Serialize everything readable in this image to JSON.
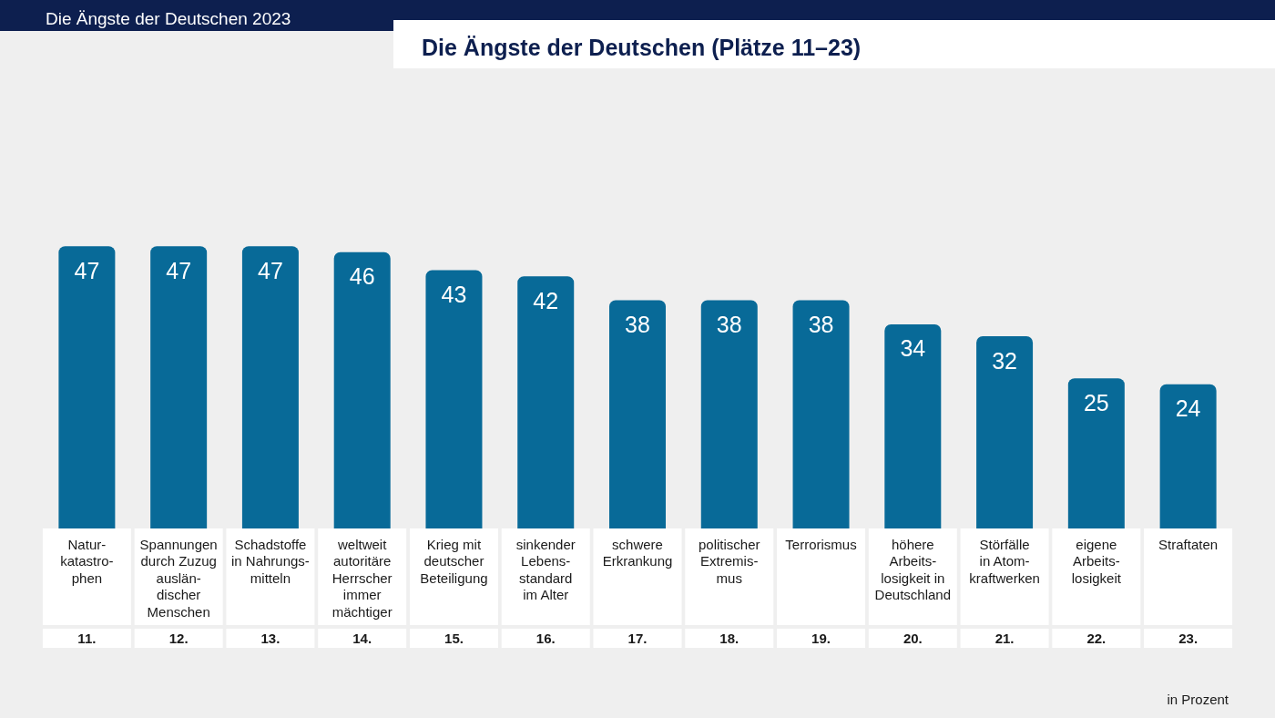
{
  "chart_data": {
    "type": "bar",
    "title": "Die Ängste der Deutschen 2023",
    "subtitle": "Die Ängste der Deutschen (Plätze 11–23)",
    "categories": [
      "Natur-\nkatastro-\nphen",
      "Spannungen\ndurch Zuzug\nauslän-\ndischer\nMenschen",
      "Schadstoffe\nin Nahrungs-\nmitteln",
      "weltweit\nautoritäre\nHerrscher\nimmer\nmächtiger",
      "Krieg mit\ndeutscher\nBeteiligung",
      "sinkender\nLebens-\nstandard\nim Alter",
      "schwere\nErkrankung",
      "politischer\nExtremis-\nmus",
      "Terrorismus",
      "höhere\nArbeits-\nlosigkeit in\nDeutschland",
      "Störfälle\nin Atom-\nkraftwerken",
      "eigene\nArbeits-\nlosigkeit",
      "Straftaten"
    ],
    "values": [
      47,
      47,
      47,
      46,
      43,
      42,
      38,
      38,
      38,
      34,
      32,
      25,
      24
    ],
    "color": "#086a98",
    "data_labels": true,
    "grid": false,
    "annotations": [
      "11.",
      "12.",
      "13.",
      "14.",
      "15.",
      "16.",
      "17.",
      "18.",
      "19.",
      "20.",
      "21.",
      "22.",
      "23.",
      "in Prozent"
    ]
  }
}
